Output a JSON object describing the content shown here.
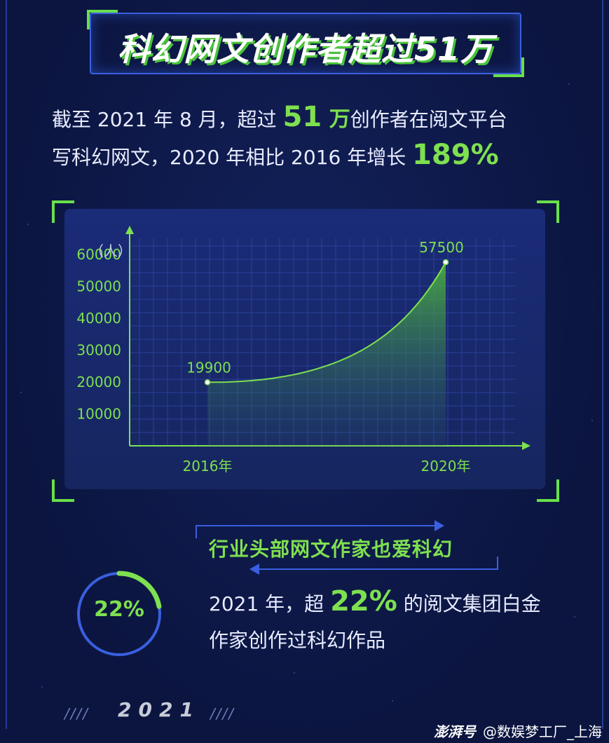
{
  "header": {
    "title": "科幻网文创作者超过51万"
  },
  "intro": {
    "line1_pre": "截至 2021 年 8 月，超过 ",
    "line1_num": "51",
    "line1_unit": " 万",
    "line1_post": "创作者在阅文平台",
    "line2_pre": "写科幻网文，2020 年相比 2016 年增长 ",
    "line2_pct": "189%"
  },
  "chart_data": {
    "type": "area",
    "ylabel": "（人）",
    "yticks": [
      10000,
      20000,
      30000,
      40000,
      50000,
      60000
    ],
    "ytick_labels": [
      "10000",
      "20000",
      "30000",
      "40000",
      "50000",
      "60000"
    ],
    "x_labels": [
      "2016年",
      "2020年"
    ],
    "x": [
      2016,
      2020
    ],
    "values": [
      19900,
      57500
    ],
    "point_labels": [
      "19900",
      "57500"
    ],
    "ylim": [
      0,
      65000
    ],
    "grid": true,
    "colors": {
      "line": "#7ee04f",
      "fill": "#4aa83a",
      "axis": "#7ee04f",
      "grid": "#2a3f9a"
    }
  },
  "section2": {
    "subtitle": "行业头部网文作家也爱科幻",
    "ring_value": 22,
    "ring_label": "22%",
    "text_pre": "2021 年，超 ",
    "text_pct": "22%",
    "text_post": " 的阅文集团白金",
    "text_line2": "作家创作过科幻作品"
  },
  "footer": {
    "year": "2021",
    "slashes_left": "////",
    "slashes_right": "////",
    "watermark_logo": "澎湃号",
    "watermark_text": "@数娱梦工厂_上海"
  },
  "colors": {
    "accent_green": "#7ee04f",
    "accent_blue": "#3a5fe0",
    "background": "#0b1540"
  }
}
